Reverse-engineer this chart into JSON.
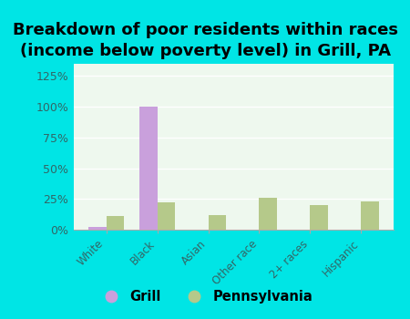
{
  "title": "Breakdown of poor residents within races\n(income below poverty level) in Grill, PA",
  "categories": [
    "White",
    "Black",
    "Asian",
    "Other race",
    "2+ races",
    "Hispanic"
  ],
  "grill_values": [
    2,
    100,
    0,
    0,
    0,
    0
  ],
  "pa_values": [
    11,
    22,
    12,
    26,
    20,
    23
  ],
  "grill_color": "#c9a0dc",
  "pa_color": "#b5c98a",
  "background_color": "#00e5e5",
  "plot_bg_top": "#d4edd8",
  "plot_bg_bottom": "#eef8ee",
  "ylim": [
    0,
    135
  ],
  "yticks": [
    0,
    25,
    50,
    75,
    100,
    125
  ],
  "ytick_labels": [
    "0%",
    "25%",
    "50%",
    "75%",
    "100%",
    "125%"
  ],
  "bar_width": 0.35,
  "title_fontsize": 13,
  "legend_labels": [
    "Grill",
    "Pennsylvania"
  ]
}
